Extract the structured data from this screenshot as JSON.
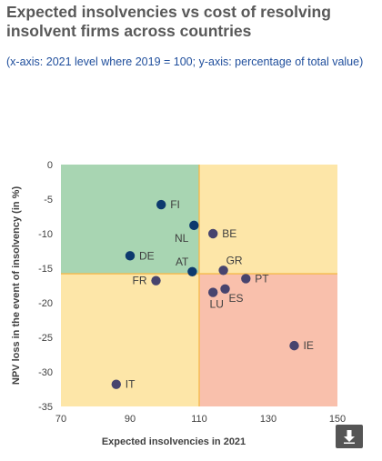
{
  "header": {
    "title": "Expected insolvencies vs cost of resolving insolvent firms across countries",
    "subtitle": "(x-axis: 2021 level where 2019 = 100; y-axis: percentage of total value)"
  },
  "download_icon": "download-icon",
  "chart_data": {
    "type": "scatter",
    "xlabel": "Expected insolvencies in 2021",
    "ylabel": "NPV loss in the event of insolvency (in %)",
    "xlim": [
      70,
      150
    ],
    "ylim": [
      -35,
      0
    ],
    "xticks": [
      "70",
      "90",
      "110",
      "130",
      "150"
    ],
    "yticks": [
      "0",
      "-5",
      "-10",
      "-15",
      "-20",
      "-25",
      "-30",
      "-35"
    ],
    "grid": false,
    "quadrants": [
      {
        "xrange": [
          70,
          110
        ],
        "yrange": [
          -15.8,
          0
        ],
        "color": "#a8d5b2"
      },
      {
        "xrange": [
          110,
          150
        ],
        "yrange": [
          -15.8,
          0
        ],
        "color": "#fde6a8"
      },
      {
        "xrange": [
          70,
          110
        ],
        "yrange": [
          -35,
          -15.8
        ],
        "color": "#fde6a8"
      },
      {
        "xrange": [
          110,
          150
        ],
        "yrange": [
          -35,
          -15.8
        ],
        "color": "#f9c0ac"
      }
    ],
    "quadrant_line_color": "#f6b94a",
    "points": [
      {
        "label": "FI",
        "x": 99,
        "y": -5.8,
        "color": "#0d3a6e",
        "anchor": "right"
      },
      {
        "label": "NL",
        "x": 108.5,
        "y": -8.8,
        "color": "#0d3a6e",
        "anchor": "below-left"
      },
      {
        "label": "BE",
        "x": 114,
        "y": -10,
        "color": "#47446e",
        "anchor": "right"
      },
      {
        "label": "DE",
        "x": 90,
        "y": -13.2,
        "color": "#0d3a6e",
        "anchor": "right"
      },
      {
        "label": "AT",
        "x": 108,
        "y": -15.5,
        "color": "#0d3a6e",
        "anchor": "above-left"
      },
      {
        "label": "FR",
        "x": 97.5,
        "y": -16.8,
        "color": "#47446e",
        "anchor": "left"
      },
      {
        "label": "GR",
        "x": 117,
        "y": -15.3,
        "color": "#47446e",
        "anchor": "above-right"
      },
      {
        "label": "PT",
        "x": 123.5,
        "y": -16.5,
        "color": "#47446e",
        "anchor": "right"
      },
      {
        "label": "ES",
        "x": 117.5,
        "y": -18,
        "color": "#47446e",
        "anchor": "below-right"
      },
      {
        "label": "LU",
        "x": 114,
        "y": -18.5,
        "color": "#47446e",
        "anchor": "below"
      },
      {
        "label": "IE",
        "x": 137.5,
        "y": -26.2,
        "color": "#47446e",
        "anchor": "right"
      },
      {
        "label": "IT",
        "x": 86,
        "y": -31.8,
        "color": "#47446e",
        "anchor": "right"
      }
    ]
  }
}
